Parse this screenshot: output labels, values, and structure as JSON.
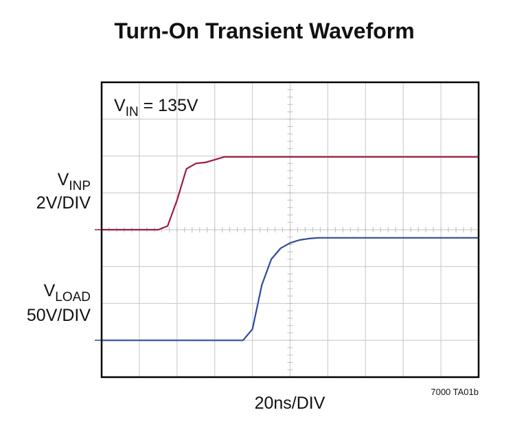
{
  "chart_data": {
    "type": "line",
    "title": "Turn-On Transient Waveform",
    "x": [
      0,
      5,
      10,
      15,
      20,
      25,
      30,
      35,
      40,
      45,
      50,
      55,
      60,
      65,
      70,
      75,
      80,
      85,
      90,
      95,
      100,
      105,
      110,
      115,
      120,
      125,
      130,
      135,
      140,
      145,
      150,
      155,
      160,
      165,
      170,
      175,
      180,
      185,
      190,
      195,
      200
    ],
    "xlim": [
      0,
      200
    ],
    "series": [
      {
        "color": "#9b1b3c",
        "values": [
          0,
          0,
          0,
          0,
          0,
          0,
          0,
          0.2,
          1.6,
          3.3,
          3.6,
          3.65,
          3.8,
          3.95,
          3.95,
          3.95,
          3.95,
          3.95,
          3.95,
          3.95,
          3.95,
          3.95,
          3.95,
          3.95,
          3.95,
          3.95,
          3.95,
          3.95,
          3.95,
          3.95,
          3.95,
          3.95,
          3.95,
          3.95,
          3.95,
          3.95,
          3.95,
          3.95,
          3.95,
          3.95,
          3.95
        ]
      },
      {
        "color": "#2d4a9c",
        "values": [
          0,
          0,
          0,
          0,
          0,
          0,
          0,
          0,
          0,
          0,
          0,
          0,
          0,
          0,
          0,
          0,
          15,
          75,
          110,
          125,
          132,
          136,
          138,
          139,
          139,
          139,
          139,
          139,
          139,
          139,
          139,
          139,
          139,
          139,
          139,
          139,
          139,
          139,
          139,
          139,
          139
        ]
      }
    ],
    "annotation": {
      "symbol": "V",
      "subscript": "IN",
      "text": " = 135V"
    },
    "trace_labels": [
      {
        "symbol": "V",
        "subscript": "INP",
        "scale": "2V/DIV"
      },
      {
        "symbol": "V",
        "subscript": "LOAD",
        "scale": "50V/DIV"
      }
    ],
    "x_label": "20ns/DIV",
    "figure_id": "7000 TA01b"
  }
}
